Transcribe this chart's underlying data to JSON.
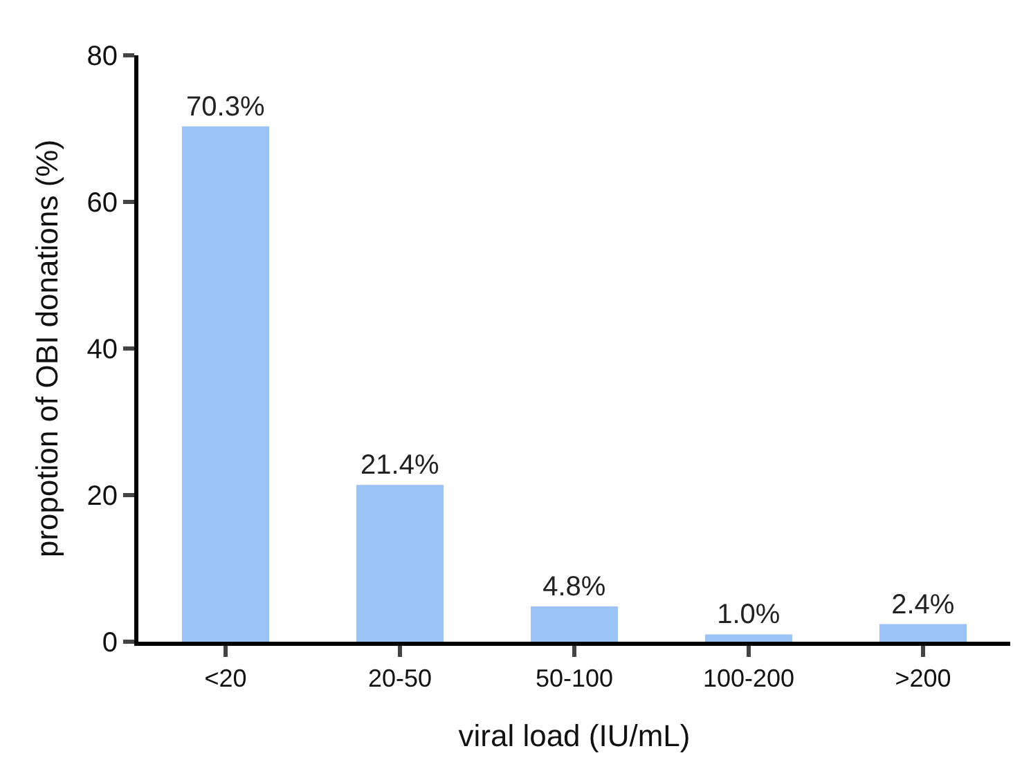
{
  "chart_data": {
    "type": "bar",
    "xlabel": "viral load (IU/mL)",
    "ylabel": "propotion of OBI donations (%)",
    "categories": [
      "<20",
      "20-50",
      "50-100",
      "100-200",
      ">200"
    ],
    "values": [
      70.3,
      21.4,
      4.8,
      1.0,
      2.4
    ],
    "value_labels": [
      "70.3%",
      "21.4%",
      "4.8%",
      "1.0%",
      "2.4%"
    ],
    "color": "#9cc3f5",
    "ylim": [
      0,
      80
    ],
    "yticks": [
      0,
      20,
      40,
      60,
      80
    ]
  }
}
